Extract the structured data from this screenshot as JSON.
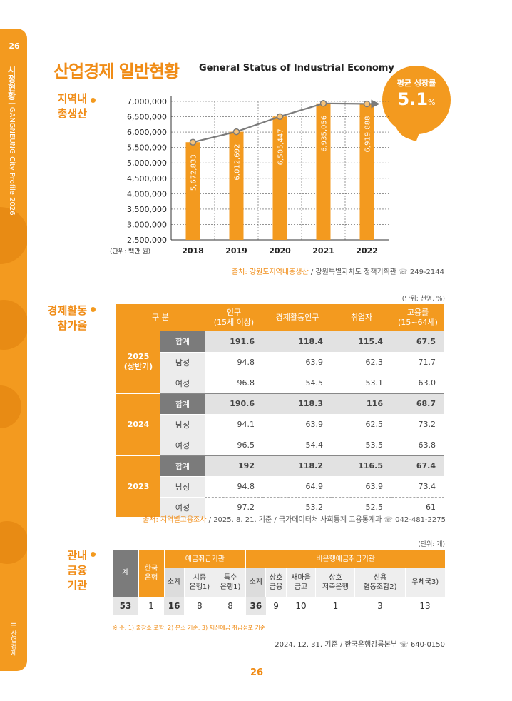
{
  "sidebar": {
    "logo": "26",
    "section": "시정현황",
    "doc": "GANGNEUNG City Profile 2026",
    "chapter_num": "III",
    "chapter": "산업경제"
  },
  "heading": {
    "title": "산업경제 일반현황",
    "subtitle": "General Status of Industrial Economy"
  },
  "badge": {
    "label": "평균 성장률",
    "value": "5.1",
    "unit": "%"
  },
  "gdp": {
    "label_line1": "지역내",
    "label_line2": "총생산",
    "unit_note": "(단위: 백만 원)",
    "source_key": "출처: 강원도지역내총생산",
    "source_rest": " / 강원특별자치도 정책기획관 ☏ 249-2144"
  },
  "chart_data": {
    "type": "bar",
    "categories": [
      "2018",
      "2019",
      "2020",
      "2021",
      "2022"
    ],
    "values": [
      5672833,
      6012692,
      6505447,
      6935056,
      6919888
    ],
    "value_labels": [
      "5,672,833",
      "6,012,692",
      "6,505,447",
      "6,935,056",
      "6,919,888"
    ],
    "ylim": [
      2500000,
      7000000
    ],
    "yticks": [
      "7,000,000",
      "6,500,000",
      "6,000,000",
      "5,500,000",
      "5,000,000",
      "4,500,000",
      "4,000,000",
      "3,500,000",
      "3,000,000",
      "2,500,000"
    ],
    "ytick_values": [
      7000000,
      6500000,
      6000000,
      5500000,
      5000000,
      4500000,
      4000000,
      3500000,
      3000000,
      2500000
    ],
    "bar_color": "#F39A1F",
    "trend_color": "#7b7b7b",
    "grid": true
  },
  "econ": {
    "label_line1": "경제활동",
    "label_line2": "참가율",
    "unit_note": "(단위: 천명, %)",
    "headers": [
      "구 분",
      "인구",
      "(15세 이상)",
      "경제활동인구",
      "취업자",
      "고용률",
      "(15~64세)"
    ],
    "groups": [
      {
        "year": "2025",
        "year_sub": "(상반기)",
        "rows": [
          {
            "sex": "합계",
            "v": [
              "191.6",
              "118.4",
              "115.4",
              "67.5"
            ]
          },
          {
            "sex": "남성",
            "v": [
              "94.8",
              "63.9",
              "62.3",
              "71.7"
            ]
          },
          {
            "sex": "여성",
            "v": [
              "96.8",
              "54.5",
              "53.1",
              "63.0"
            ]
          }
        ]
      },
      {
        "year": "2024",
        "year_sub": "",
        "rows": [
          {
            "sex": "합계",
            "v": [
              "190.6",
              "118.3",
              "116",
              "68.7"
            ]
          },
          {
            "sex": "남성",
            "v": [
              "94.1",
              "63.9",
              "62.5",
              "73.2"
            ]
          },
          {
            "sex": "여성",
            "v": [
              "96.5",
              "54.4",
              "53.5",
              "63.8"
            ]
          }
        ]
      },
      {
        "year": "2023",
        "year_sub": "",
        "rows": [
          {
            "sex": "합계",
            "v": [
              "192",
              "118.2",
              "116.5",
              "67.4"
            ]
          },
          {
            "sex": "남성",
            "v": [
              "94.8",
              "64.9",
              "63.9",
              "73.4"
            ]
          },
          {
            "sex": "여성",
            "v": [
              "97.2",
              "53.2",
              "52.5",
              "61"
            ]
          }
        ]
      }
    ],
    "source_key": "출처: 지역별고용조사",
    "source_rest": " / 2025. 8. 21. 기준 / 국가데이터처 사회통계 고용통계과 ☏ 042-481-2275"
  },
  "finance": {
    "label_line1": "관내",
    "label_line2": "금융",
    "label_line3": "기관",
    "unit_note": "(단위: 개)",
    "h_total": "계",
    "h_bok_1": "한국",
    "h_bok_2": "은행",
    "h_deposit": "예금취급기관",
    "h_nondeposit": "비은행예금취급기관",
    "sub": [
      {
        "l1": "소계",
        "l2": ""
      },
      {
        "l1": "시중",
        "l2": "은행1)"
      },
      {
        "l1": "특수",
        "l2": "은행1)"
      },
      {
        "l1": "소계",
        "l2": ""
      },
      {
        "l1": "상호",
        "l2": "금융"
      },
      {
        "l1": "새마을",
        "l2": "금고"
      },
      {
        "l1": "상호",
        "l2": "저축은행"
      },
      {
        "l1": "신용",
        "l2": "협동조합2)"
      },
      {
        "l1": "우체국3)",
        "l2": ""
      }
    ],
    "values": [
      "53",
      "1",
      "16",
      "8",
      "8",
      "36",
      "9",
      "10",
      "1",
      "3",
      "13"
    ],
    "note": "※ 주: 1) 출장소 포함, 2) 본소 기준, 3) 체신예금 취급점포 기준",
    "source": "2024. 12. 31. 기준 / 한국은행강릉본부 ☏ 640-0150"
  },
  "page_number": "26"
}
